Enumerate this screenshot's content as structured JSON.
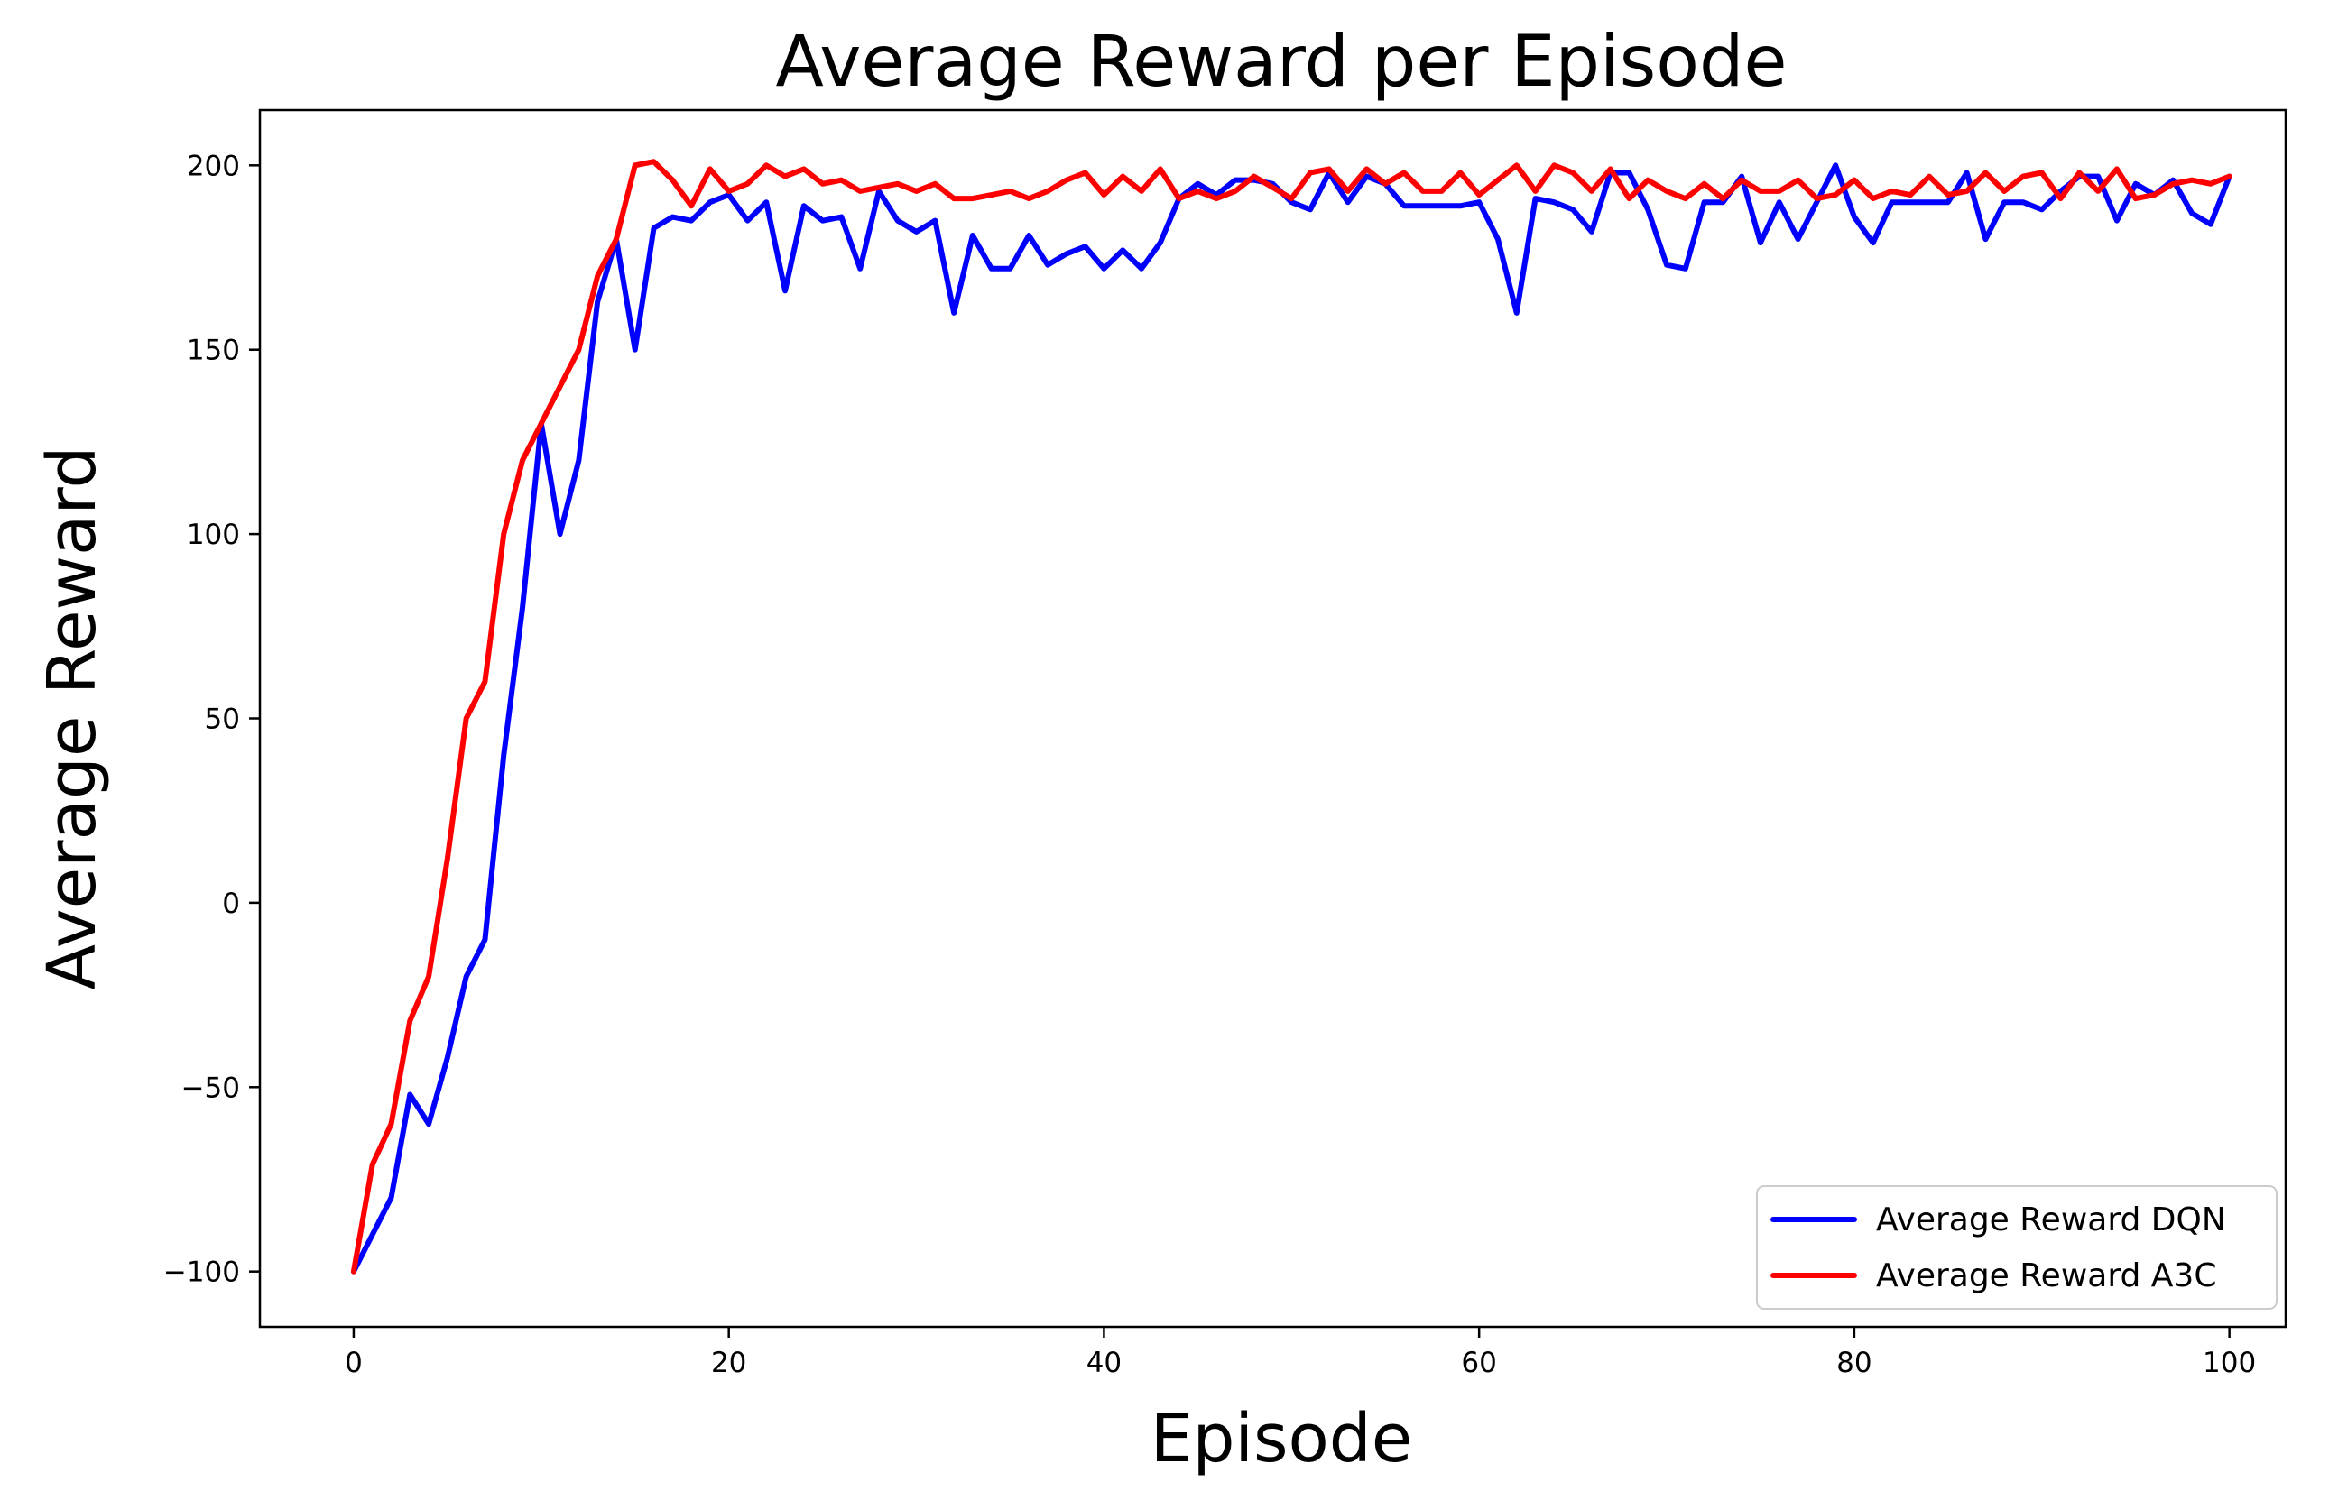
{
  "chart_data": {
    "type": "line",
    "title": "Average Reward per Episode",
    "xlabel": "Episode",
    "ylabel": "Average Reward",
    "xlim": [
      -5,
      103
    ],
    "ylim": [
      -115,
      215
    ],
    "xticks": [
      0,
      20,
      40,
      60,
      80,
      100
    ],
    "yticks": [
      -100,
      -50,
      0,
      50,
      100,
      150,
      200
    ],
    "grid": false,
    "legend_position": "lower-right",
    "series": [
      {
        "name": "Average Reward DQN",
        "color": "#0000ff",
        "values": [
          -100,
          -90,
          -80,
          -52,
          -60,
          -42,
          -20,
          -10,
          40,
          80,
          130,
          100,
          120,
          163,
          180,
          150,
          183,
          186,
          185,
          190,
          192,
          185,
          190,
          166,
          189,
          185,
          186,
          172,
          193,
          185,
          182,
          185,
          160,
          181,
          172,
          172,
          181,
          173,
          176,
          178,
          172,
          177,
          172,
          179,
          191,
          195,
          192,
          196,
          196,
          195,
          190,
          188,
          198,
          190,
          197,
          195,
          189,
          189,
          189,
          189,
          190,
          180,
          160,
          191,
          190,
          188,
          182,
          198,
          198,
          188,
          173,
          172,
          190,
          190,
          197,
          179,
          190,
          180,
          190,
          200,
          186,
          179,
          190,
          190,
          190,
          190,
          198,
          180,
          190,
          190,
          188,
          193,
          197,
          197,
          185,
          195,
          192,
          196,
          187,
          184,
          197
        ]
      },
      {
        "name": "Average Reward A3C",
        "color": "#ff0000",
        "values": [
          -100,
          -71,
          -60,
          -32,
          -20,
          12,
          50,
          60,
          100,
          120,
          130,
          140,
          150,
          170,
          180,
          200,
          201,
          196,
          189,
          199,
          193,
          195,
          200,
          197,
          199,
          195,
          196,
          193,
          194,
          195,
          193,
          195,
          191,
          191,
          192,
          193,
          191,
          193,
          196,
          198,
          192,
          197,
          193,
          199,
          191,
          193,
          191,
          193,
          197,
          194,
          191,
          198,
          199,
          193,
          199,
          195,
          198,
          193,
          193,
          198,
          192,
          196,
          200,
          193,
          200,
          198,
          193,
          199,
          191,
          196,
          193,
          191,
          195,
          191,
          196,
          193,
          193,
          196,
          191,
          192,
          196,
          191,
          193,
          192,
          197,
          192,
          193,
          198,
          193,
          197,
          198,
          191,
          198,
          193,
          199,
          191,
          192,
          195,
          196,
          195,
          197
        ]
      }
    ]
  }
}
